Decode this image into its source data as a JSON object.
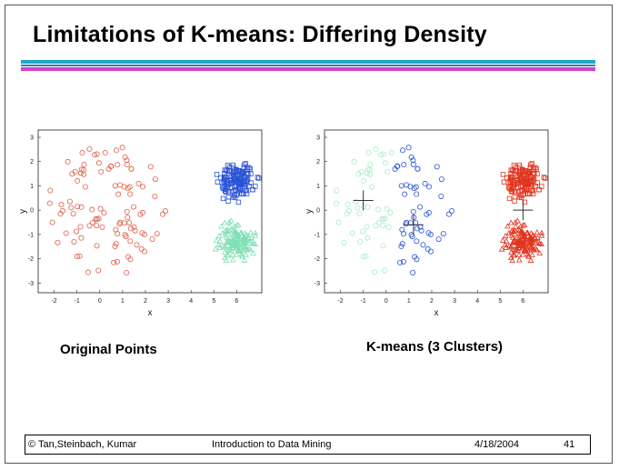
{
  "slide": {
    "title": "Limitations of K-means: Differing Density",
    "caption_left": "Original Points",
    "caption_right": "K-means (3 Clusters)"
  },
  "footer": {
    "copyright": "© Tan,Steinbach, Kumar",
    "course": "Introduction to Data Mining",
    "date": "4/18/2004",
    "page": "41"
  },
  "colors": {
    "sparse": "#e0604a",
    "blue": "#2a52d6",
    "green": "#7fe0b4",
    "lightgreen": "#a8ecc8",
    "red": "#e0341e",
    "bar_cyan": "#1fa6c9",
    "bar_magenta": "#d63fcf"
  },
  "chart_data": [
    {
      "type": "scatter",
      "title": "",
      "xlabel": "x",
      "ylabel": "y",
      "xlim": [
        -2.7,
        7.1
      ],
      "ylim": [
        -3.4,
        3.3
      ],
      "xticks": [
        -2,
        -1,
        0,
        1,
        2,
        3,
        4,
        5,
        6
      ],
      "yticks": [
        -3,
        -2,
        -1,
        0,
        1,
        2,
        3
      ],
      "series": [
        {
          "cluster": "sparse",
          "color": "#e0604a",
          "marker": "circle",
          "center": [
            0.3,
            0.0
          ],
          "radius": 2.6,
          "count": 105
        },
        {
          "cluster": "dense-top",
          "color": "#2a52d6",
          "marker": "square",
          "center": [
            6.0,
            1.2
          ],
          "radius": 1.0,
          "count": 140
        },
        {
          "cluster": "dense-bottom",
          "color": "#7fe0b4",
          "marker": "triangle",
          "center": [
            6.0,
            -1.3
          ],
          "radius": 1.0,
          "count": 140
        }
      ]
    },
    {
      "type": "scatter",
      "title": "",
      "xlabel": "x",
      "ylabel": "y",
      "xlim": [
        -2.7,
        7.1
      ],
      "ylim": [
        -3.4,
        3.3
      ],
      "xticks": [
        -2,
        -1,
        0,
        1,
        2,
        3,
        4,
        5,
        6
      ],
      "yticks": [
        -3,
        -2,
        -1,
        0,
        1,
        2,
        3
      ],
      "centroids": [
        [
          -1.0,
          0.4
        ],
        [
          1.2,
          -0.6
        ],
        [
          6.0,
          0.0
        ]
      ],
      "series": [
        {
          "cluster": "kmeans-1",
          "color": "#a8ecc8",
          "marker": "circle",
          "region": "sparse, x < 0.3"
        },
        {
          "cluster": "kmeans-2",
          "color": "#2a52d6",
          "marker": "circle",
          "region": "sparse, x >= 0.3"
        },
        {
          "cluster": "kmeans-3",
          "color": "#e0341e",
          "marker": "square/triangle",
          "region": "both dense clusters"
        }
      ]
    }
  ]
}
